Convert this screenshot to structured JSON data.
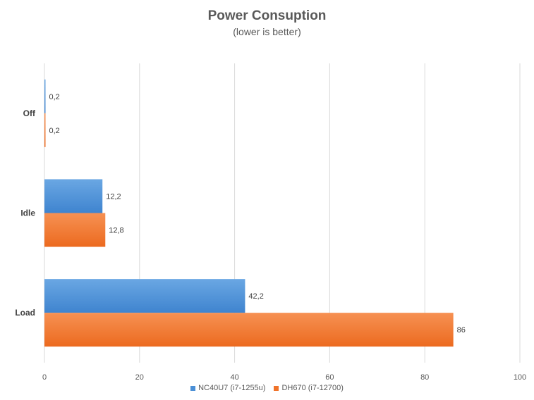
{
  "chart_data": {
    "type": "bar",
    "orientation": "horizontal",
    "title": "Power Consuption",
    "subtitle": "(lower is better)",
    "categories": [
      "Off",
      "Idle",
      "Load"
    ],
    "series": [
      {
        "name": "NC40U7 (i7-1255u)",
        "values": [
          0.2,
          12.2,
          42.2
        ],
        "labels": [
          "0,2",
          "12,2",
          "42,2"
        ],
        "color": "#4a8fd6"
      },
      {
        "name": "DH670 (i7-12700)",
        "values": [
          0.2,
          12.8,
          86
        ],
        "labels": [
          "0,2",
          "12,8",
          "86"
        ],
        "color": "#f0732a"
      }
    ],
    "xlim": [
      0,
      100
    ],
    "x_ticks": [
      0,
      20,
      40,
      60,
      80,
      100
    ],
    "grid": true,
    "legend_position": "bottom"
  }
}
